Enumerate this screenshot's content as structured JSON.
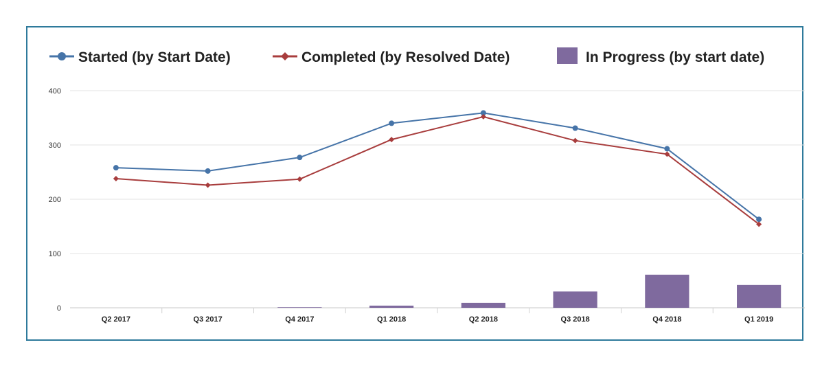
{
  "chart_data": {
    "type": "bar",
    "categories": [
      "Q2 2017",
      "Q3 2017",
      "Q4 2017",
      "Q1 2018",
      "Q2 2018",
      "Q3 2018",
      "Q4 2018",
      "Q1 2019"
    ],
    "series": [
      {
        "name": "Started (by Start Date)",
        "type": "line",
        "color": "#4674a8",
        "marker": "circle",
        "values": [
          258,
          252,
          277,
          340,
          359,
          331,
          293,
          163
        ]
      },
      {
        "name": "Completed (by Resolved Date)",
        "type": "line",
        "color": "#a83d3d",
        "marker": "diamond",
        "values": [
          238,
          226,
          237,
          310,
          352,
          308,
          283,
          154
        ]
      },
      {
        "name": "In Progress (by start date)",
        "type": "bar",
        "color": "#7f6a9e",
        "values": [
          0,
          0,
          1,
          4,
          9,
          30,
          61,
          42
        ]
      }
    ],
    "title": "",
    "xlabel": "",
    "ylabel": "",
    "ylim": [
      0,
      400
    ],
    "yticks": [
      0,
      100,
      200,
      300,
      400
    ],
    "grid": true,
    "legend_position": "top"
  }
}
